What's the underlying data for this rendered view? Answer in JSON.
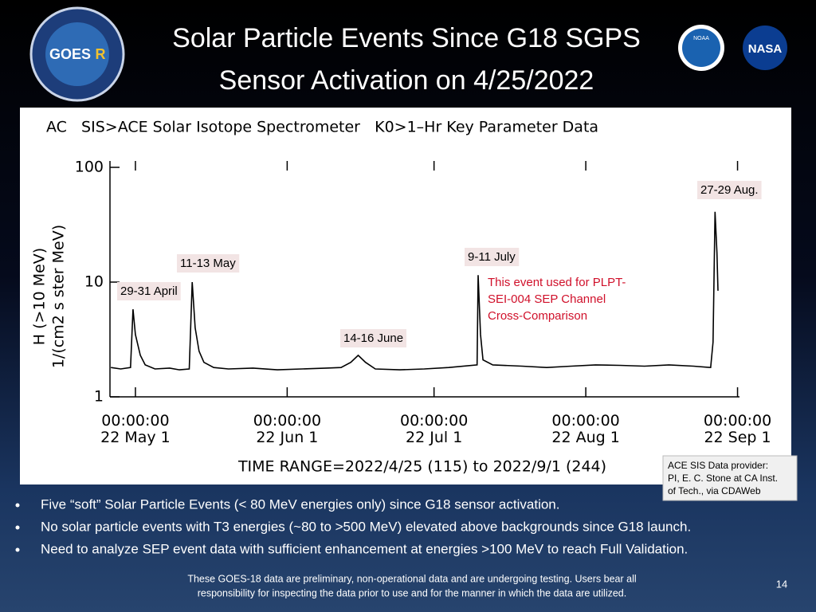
{
  "slide": {
    "title": [
      "Solar Particle Events Since G18 SGPS",
      "Sensor Activation on 4/25/2022"
    ],
    "credit": [
      "ACE SIS Data provider:",
      "PI, E. C. Stone at CA Inst.",
      "of Tech., via CDAWeb"
    ],
    "bullets": [
      "Five “soft” Solar Particle Events (< 80 MeV energies only) since G18 sensor activation.",
      "No solar particle events with T3 energies (~80 to >500 MeV) elevated above backgrounds since G18 launch.",
      "Need to analyze SEP event data with sufficient enhancement at energies >100 MeV to reach Full Validation."
    ],
    "footer": [
      "These GOES-18 data are preliminary, non-operational data and are undergoing testing. Users bear all",
      "responsibility for inspecting the data prior to use and for the manner in which the data are utilized."
    ],
    "page_number": "14",
    "logos": [
      "GOES",
      "R",
      "NOAA",
      "NASA"
    ]
  },
  "chart_data": {
    "type": "line",
    "title": "AC   SIS>ACE Solar Isotope Spectrometer   K0>1–Hr Key Parameter Data",
    "ylabel": [
      "H (>10 MeV)",
      "1/(cm2 s ster MeV)"
    ],
    "xlabel": "TIME RANGE=2022/4/25 (115) to 2022/9/1 (244)",
    "yscale": "log",
    "ylim": [
      1,
      100
    ],
    "yticks": [
      1,
      10,
      100
    ],
    "xlim": [
      115.8,
      244.4
    ],
    "xticks": [
      {
        "value": 121,
        "label": "00:00:00\n22 May  1"
      },
      {
        "value": 152,
        "label": "00:00:00\n22 Jun  1"
      },
      {
        "value": 182,
        "label": "00:00:00\n22 Jul  1"
      },
      {
        "value": 213,
        "label": "00:00:00\n22 Aug  1"
      },
      {
        "value": 244,
        "label": "00:00:00\n22 Sep  1"
      }
    ],
    "x": [
      116,
      118,
      120,
      120.5,
      121,
      122,
      123,
      125,
      128,
      130,
      132,
      132.6,
      133.2,
      134,
      135,
      137,
      140,
      145,
      150,
      155,
      160,
      163,
      165,
      166.5,
      168,
      170,
      175,
      180,
      185,
      190.8,
      191,
      191.5,
      192,
      194,
      200,
      205,
      210,
      215,
      220,
      225,
      230,
      235,
      238.5,
      239,
      239.4,
      239.8,
      240
    ],
    "series": [
      {
        "name": "H (>10 MeV)",
        "color": "#000000",
        "values": [
          1.8,
          1.75,
          1.8,
          5.8,
          3.5,
          2.3,
          1.9,
          1.75,
          1.78,
          1.72,
          1.75,
          10,
          4,
          2.5,
          2.0,
          1.8,
          1.75,
          1.78,
          1.72,
          1.75,
          1.78,
          1.8,
          2.0,
          2.3,
          2.0,
          1.75,
          1.72,
          1.75,
          1.8,
          1.9,
          11.5,
          3.5,
          2.1,
          1.9,
          1.85,
          1.8,
          1.85,
          1.9,
          1.88,
          1.85,
          1.9,
          1.85,
          1.8,
          3,
          41,
          18,
          8.4
        ]
      }
    ],
    "annotations": [
      "29-31 April",
      "11-13 May",
      "14-16 June",
      "9-11 July",
      "27-29 Aug.",
      "This event used for PLPT-\nSEI-004 SEP Channel\nCross-Comparison"
    ]
  }
}
